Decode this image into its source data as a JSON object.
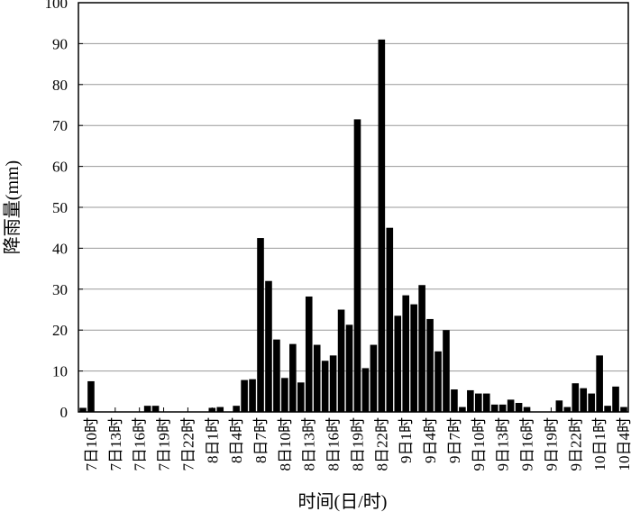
{
  "chart_data": {
    "type": "bar",
    "x_label": "时间(日/时)",
    "y_label": "降雨量(mm)",
    "categories": [
      null,
      "7日10时",
      null,
      null,
      "7日13时",
      null,
      null,
      "7日16时",
      null,
      null,
      "7日19时",
      null,
      null,
      "7日22时",
      null,
      null,
      "8日1时",
      null,
      null,
      "8日4时",
      null,
      null,
      "8日7时",
      null,
      null,
      "8日10时",
      null,
      null,
      "8日13时",
      null,
      null,
      "8日16时",
      null,
      null,
      "8日19时",
      null,
      null,
      "8日22时",
      null,
      null,
      "9日1时",
      null,
      null,
      "9日4时",
      null,
      null,
      "9日7时",
      null,
      null,
      "9日10时",
      null,
      null,
      "9日13时",
      null,
      null,
      "9日16时",
      null,
      null,
      "9日19时",
      null,
      null,
      "9日22时",
      null,
      null,
      "10日1时",
      null,
      null,
      "10日4时"
    ],
    "values": [
      1,
      7.5,
      0,
      0,
      0,
      0,
      0,
      0,
      1.5,
      1.5,
      0,
      0,
      0,
      0,
      0,
      0,
      1,
      1.2,
      0,
      1.5,
      7.8,
      8,
      42.5,
      32,
      17.7,
      8.3,
      16.6,
      7.2,
      28.2,
      16.4,
      12.5,
      13.8,
      25,
      21.3,
      71.5,
      10.7,
      16.4,
      91,
      45,
      23.5,
      28.5,
      26.3,
      31,
      22.7,
      14.8,
      20,
      5.5,
      1.2,
      5.3,
      4.5,
      4.5,
      1.8,
      1.8,
      3,
      2.2,
      1.2,
      0,
      0,
      0,
      2.8,
      1.2,
      7,
      5.8,
      4.5,
      13.8,
      1.5,
      6.2,
      1.2
    ],
    "color": "#000000",
    "ylim": [
      0,
      100
    ],
    "yticks": [
      0,
      10,
      20,
      30,
      40,
      50,
      60,
      70,
      80,
      90,
      100
    ],
    "grid": true
  }
}
